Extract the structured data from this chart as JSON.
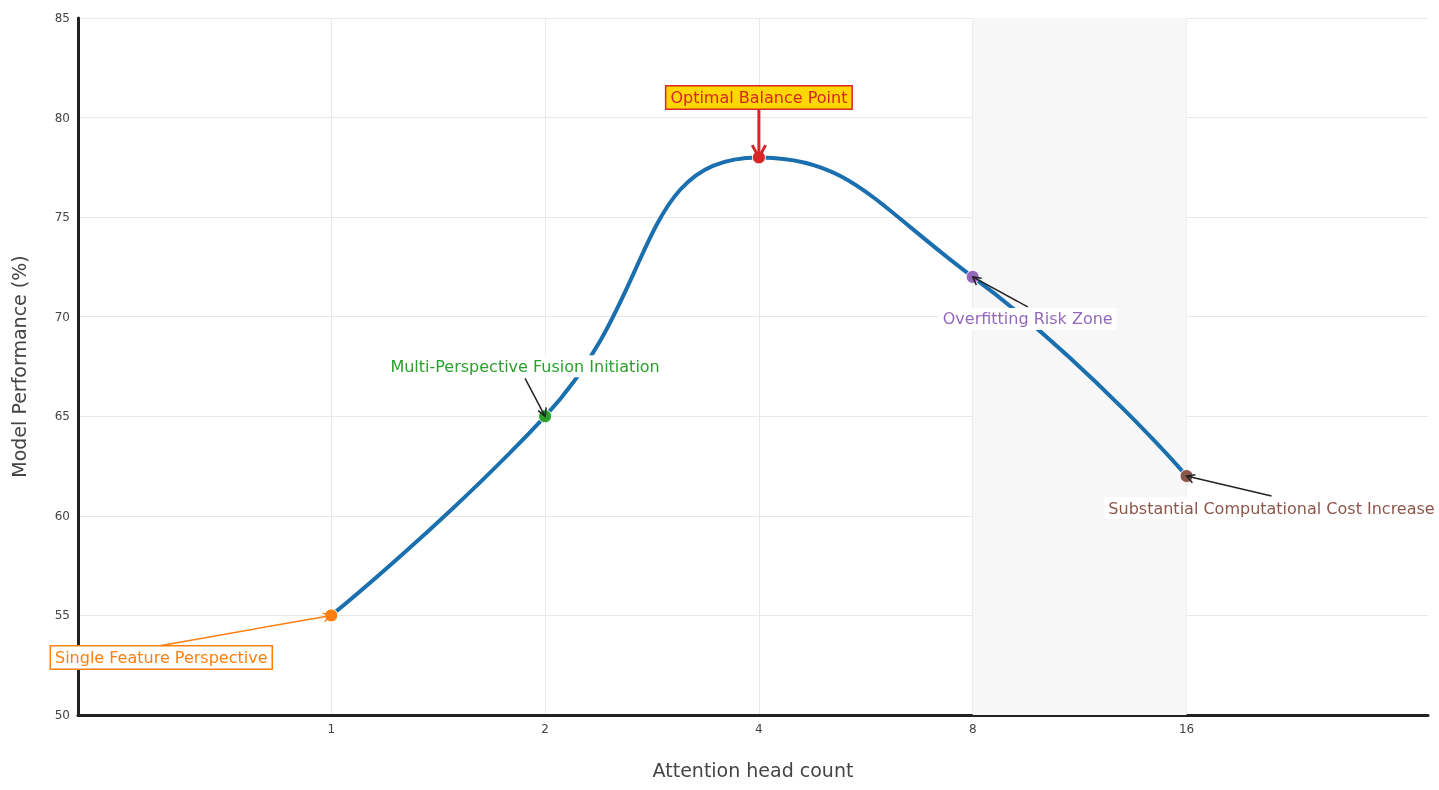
{
  "chart_data": {
    "type": "line",
    "xlabel": "Attention head count",
    "ylabel": "Model Performance (%)",
    "x": [
      1,
      2,
      4,
      8,
      16
    ],
    "series": [
      {
        "color": "#1a6faf",
        "colors": [
          "#ff7f0e",
          "#2ca02c",
          "#d62728",
          "#9467bd",
          "#8c564b"
        ],
        "values": [
          55,
          65,
          78,
          72,
          62
        ]
      }
    ],
    "xlim": [
      0.44,
      35
    ],
    "xticks": [
      1,
      2,
      4,
      8,
      16
    ],
    "ylim": [
      50,
      85
    ],
    "yticks": [
      50,
      55,
      60,
      65,
      70,
      75,
      80,
      85
    ],
    "log": "x",
    "grid": true,
    "marker": "circle",
    "line_style": "solid",
    "bands": [
      {
        "axis": "x",
        "from": 8,
        "to": 16,
        "color": "#f7f7f7"
      }
    ],
    "annotations": [
      {
        "text": "Single Feature Perspective",
        "x": 1,
        "y": 55
      },
      {
        "text": "Multi-Perspective Fusion Initiation",
        "x": 2,
        "y": 65
      },
      {
        "text": "Optimal Balance Point",
        "x": 4,
        "y": 78
      },
      {
        "text": "Overfitting Risk Zone",
        "x": 8,
        "y": 72
      },
      {
        "text": "Substantial Computational Cost Increase",
        "x": 16,
        "y": 62
      }
    ]
  }
}
